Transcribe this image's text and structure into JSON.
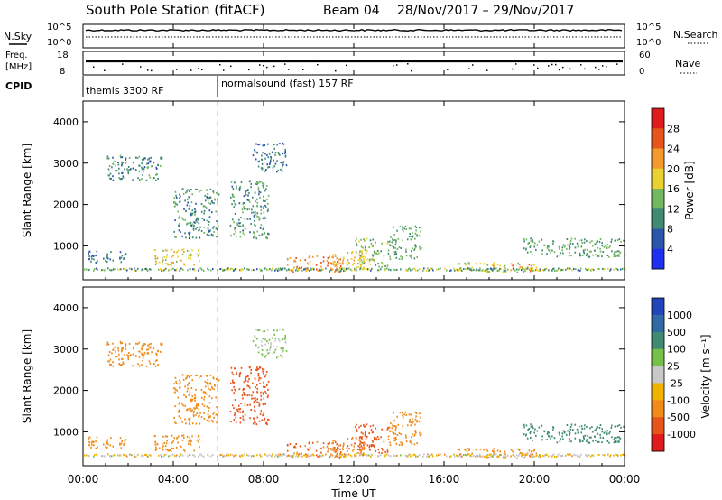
{
  "header": {
    "station": "South Pole Station (fitACF)",
    "beam": "Beam 04",
    "dates": "28/Nov/2017 – 29/Nov/2017"
  },
  "panels": {
    "nsky": {
      "label": "N.Sky",
      "ticks": [
        "10^5",
        "10^0"
      ]
    },
    "nsearch": {
      "label": "N.Search",
      "ticks": [
        "10^5",
        "10^0"
      ]
    },
    "freq": {
      "label_line1": "Freq.",
      "label_line2": "[MHz]",
      "ticks": [
        "18",
        "8"
      ]
    },
    "nave": {
      "label": "Nave",
      "ticks": [
        "60",
        "0"
      ]
    },
    "cpid": {
      "label": "CPID",
      "programs": [
        {
          "name": "themis 3300 RF",
          "start_hour": 0
        },
        {
          "name": "normalsound (fast) 157 RF",
          "start_hour": 6
        }
      ]
    }
  },
  "chart_data": {
    "type": "heatmap",
    "xlabel": "Time UT",
    "x_ticks": [
      "00:00",
      "04:00",
      "08:00",
      "12:00",
      "16:00",
      "20:00",
      "00:00"
    ],
    "xlim_hours": [
      0,
      24
    ],
    "ylabel": "Slant Range [km]",
    "ylim_km": [
      180,
      4500
    ],
    "y_ticks": [
      1000,
      2000,
      3000,
      4000
    ],
    "power": {
      "colorbar_label": "Power [dB]",
      "colorbar_ticks": [
        "28",
        "24",
        "20",
        "16",
        "12",
        "8",
        "4"
      ],
      "colors": [
        "#1f2ff0",
        "#2a55a8",
        "#3f8a72",
        "#74b85e",
        "#e9d230",
        "#f29a2c",
        "#e8551c",
        "#e01b1b"
      ]
    },
    "velocity": {
      "colorbar_label": "Velocity [m s⁻¹]",
      "colorbar_ticks": [
        "1000",
        "500",
        "100",
        "25",
        "-25",
        "-100",
        "-500",
        "-1000"
      ],
      "colors": [
        "#2244bb",
        "#2f6aa6",
        "#3f8a72",
        "#76c04a",
        "#c8c8c8",
        "#f0b400",
        "#f08a18",
        "#e8551c",
        "#e01b1b"
      ]
    },
    "ground_scatter_band_km": [
      420,
      480
    ],
    "echo_regions": [
      {
        "t0": 0.2,
        "t1": 2.0,
        "r0": 600,
        "r1": 900,
        "power_db": 8,
        "velocity": -100
      },
      {
        "t0": 1.0,
        "t1": 3.5,
        "r0": 2600,
        "r1": 3200,
        "power_db": 10,
        "velocity": -100
      },
      {
        "t0": 3.0,
        "t1": 5.2,
        "r0": 550,
        "r1": 950,
        "power_db": 18,
        "velocity": -150
      },
      {
        "t0": 4.0,
        "t1": 6.0,
        "r0": 1200,
        "r1": 2400,
        "power_db": 10,
        "velocity": -100
      },
      {
        "t0": 6.5,
        "t1": 8.2,
        "r0": 1200,
        "r1": 2600,
        "power_db": 11,
        "velocity": -500
      },
      {
        "t0": 7.5,
        "t1": 9.0,
        "r0": 2800,
        "r1": 3500,
        "power_db": 8,
        "velocity": 25
      },
      {
        "t0": 9.0,
        "t1": 11.5,
        "r0": 380,
        "r1": 780,
        "power_db": 24,
        "velocity": -300
      },
      {
        "t0": 11.0,
        "t1": 12.5,
        "r0": 400,
        "r1": 900,
        "power_db": 20,
        "velocity": -250
      },
      {
        "t0": 12.0,
        "t1": 13.5,
        "r0": 500,
        "r1": 1200,
        "power_db": 14,
        "velocity": -500
      },
      {
        "t0": 13.5,
        "t1": 15.0,
        "r0": 700,
        "r1": 1500,
        "power_db": 12,
        "velocity": -150
      },
      {
        "t0": 16.5,
        "t1": 19.5,
        "r0": 380,
        "r1": 620,
        "power_db": 18,
        "velocity": -200
      },
      {
        "t0": 19.0,
        "t1": 20.5,
        "r0": 400,
        "r1": 600,
        "power_db": 22,
        "velocity": -150
      },
      {
        "t0": 19.5,
        "t1": 24.0,
        "r0": 750,
        "r1": 1200,
        "power_db": 12,
        "velocity": 150
      }
    ]
  }
}
